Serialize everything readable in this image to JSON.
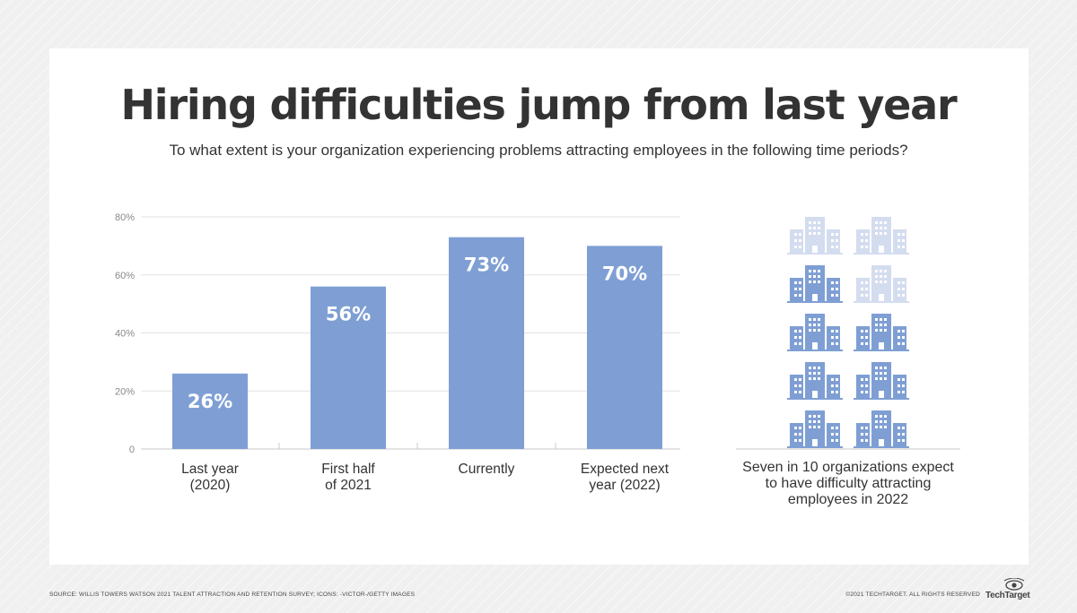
{
  "header": {
    "title": "Hiring difficulties jump from last year",
    "subtitle": "To what extent is your organization experiencing problems attracting employees in the following time periods?"
  },
  "chart_data": {
    "type": "bar",
    "categories": [
      [
        "Last year",
        "(2020)"
      ],
      [
        "First half",
        "of 2021"
      ],
      [
        "Currently"
      ],
      [
        "Expected next",
        "year (2022)"
      ]
    ],
    "values": [
      26,
      56,
      73,
      70
    ],
    "value_labels": [
      "26%",
      "56%",
      "73%",
      "70%"
    ],
    "y_ticks": [
      0,
      20,
      40,
      60,
      80
    ],
    "y_tick_labels": [
      "0",
      "20%",
      "40%",
      "60%",
      "80%"
    ],
    "ylim": [
      0,
      80
    ],
    "grid": true,
    "bar_color": "#7f9fd4"
  },
  "icon_grid": {
    "icon": "office-building-icon",
    "total": 10,
    "highlighted": 7,
    "highlight_color": "#7f9fd4",
    "faded_color": "#d4dcef",
    "caption": "Seven in 10 organizations expect to have difficulty attracting employees in 2022"
  },
  "footer": {
    "source": "SOURCE: WILLIS TOWERS WATSON 2021 TALENT ATTRACTION AND RETENTION SURVEY; ICONS: -VICTOR-/GETTY IMAGES",
    "copyright": "©2021 TECHTARGET. ALL RIGHTS RESERVED",
    "logo": "TechTarget"
  }
}
